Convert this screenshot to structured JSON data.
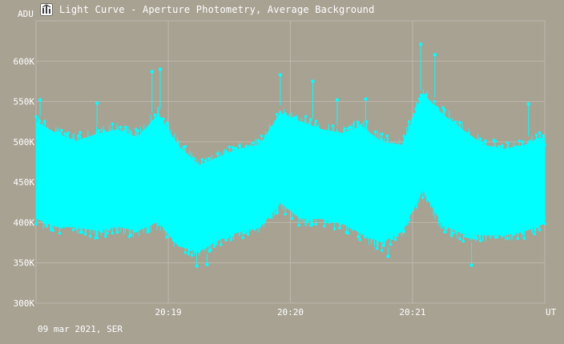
{
  "window": {
    "title": "Light Curve - Aperture Photometry, Average Background"
  },
  "footer": {
    "date": "09 mar 2021, SER"
  },
  "colors": {
    "background": "#a8a293",
    "series": "#00ffff",
    "grid": "#bdb8ac",
    "text": "#ffffff"
  },
  "chart_data": {
    "type": "line",
    "title": "Light Curve - Aperture Photometry, Average Background",
    "xlabel": "UT",
    "ylabel": "ADU",
    "grid": true,
    "ylim": [
      300000,
      650000
    ],
    "xlim": [
      "20:17:55",
      "20:22:05"
    ],
    "y_ticks": [
      300000,
      350000,
      400000,
      450000,
      500000,
      550000,
      600000
    ],
    "y_tick_labels": [
      "300K",
      "350K",
      "400K",
      "450K",
      "500K",
      "550K",
      "600K"
    ],
    "x_ticks": [
      "20:19",
      "20:20",
      "20:21"
    ],
    "series": [
      {
        "color": "#00ffff",
        "markers": true,
        "band": {
          "x": [
            "20:17:55",
            "20:18:05",
            "20:18:15",
            "20:18:25",
            "20:18:35",
            "20:18:45",
            "20:18:55",
            "20:19:05",
            "20:19:15",
            "20:19:25",
            "20:19:35",
            "20:19:45",
            "20:19:55",
            "20:20:05",
            "20:20:15",
            "20:20:25",
            "20:20:35",
            "20:20:45",
            "20:20:55",
            "20:21:05",
            "20:21:15",
            "20:21:25",
            "20:21:35",
            "20:21:45",
            "20:21:55",
            "20:22:05"
          ],
          "upper": [
            535000,
            520000,
            510000,
            520000,
            525000,
            515000,
            545000,
            505000,
            480000,
            490000,
            500000,
            505000,
            545000,
            535000,
            525000,
            520000,
            530000,
            510000,
            505000,
            570000,
            545000,
            525000,
            505000,
            500000,
            505000,
            515000
          ],
          "lower": [
            395000,
            385000,
            385000,
            380000,
            385000,
            380000,
            390000,
            360000,
            355000,
            370000,
            380000,
            385000,
            415000,
            395000,
            395000,
            390000,
            375000,
            365000,
            380000,
            430000,
            385000,
            375000,
            375000,
            375000,
            380000,
            390000
          ],
          "peaks": [
            {
              "x": "20:17:57",
              "y": 552000
            },
            {
              "x": "20:18:25",
              "y": 548000
            },
            {
              "x": "20:18:52",
              "y": 587000
            },
            {
              "x": "20:18:56",
              "y": 590000
            },
            {
              "x": "20:19:14",
              "y": 346000
            },
            {
              "x": "20:19:19",
              "y": 348000
            },
            {
              "x": "20:19:55",
              "y": 583000
            },
            {
              "x": "20:20:11",
              "y": 575000
            },
            {
              "x": "20:20:23",
              "y": 552000
            },
            {
              "x": "20:20:37",
              "y": 553000
            },
            {
              "x": "20:20:48",
              "y": 358000
            },
            {
              "x": "20:21:04",
              "y": 621000
            },
            {
              "x": "20:21:11",
              "y": 608000
            },
            {
              "x": "20:21:29",
              "y": 347000
            },
            {
              "x": "20:21:57",
              "y": 547000
            }
          ]
        }
      }
    ]
  }
}
